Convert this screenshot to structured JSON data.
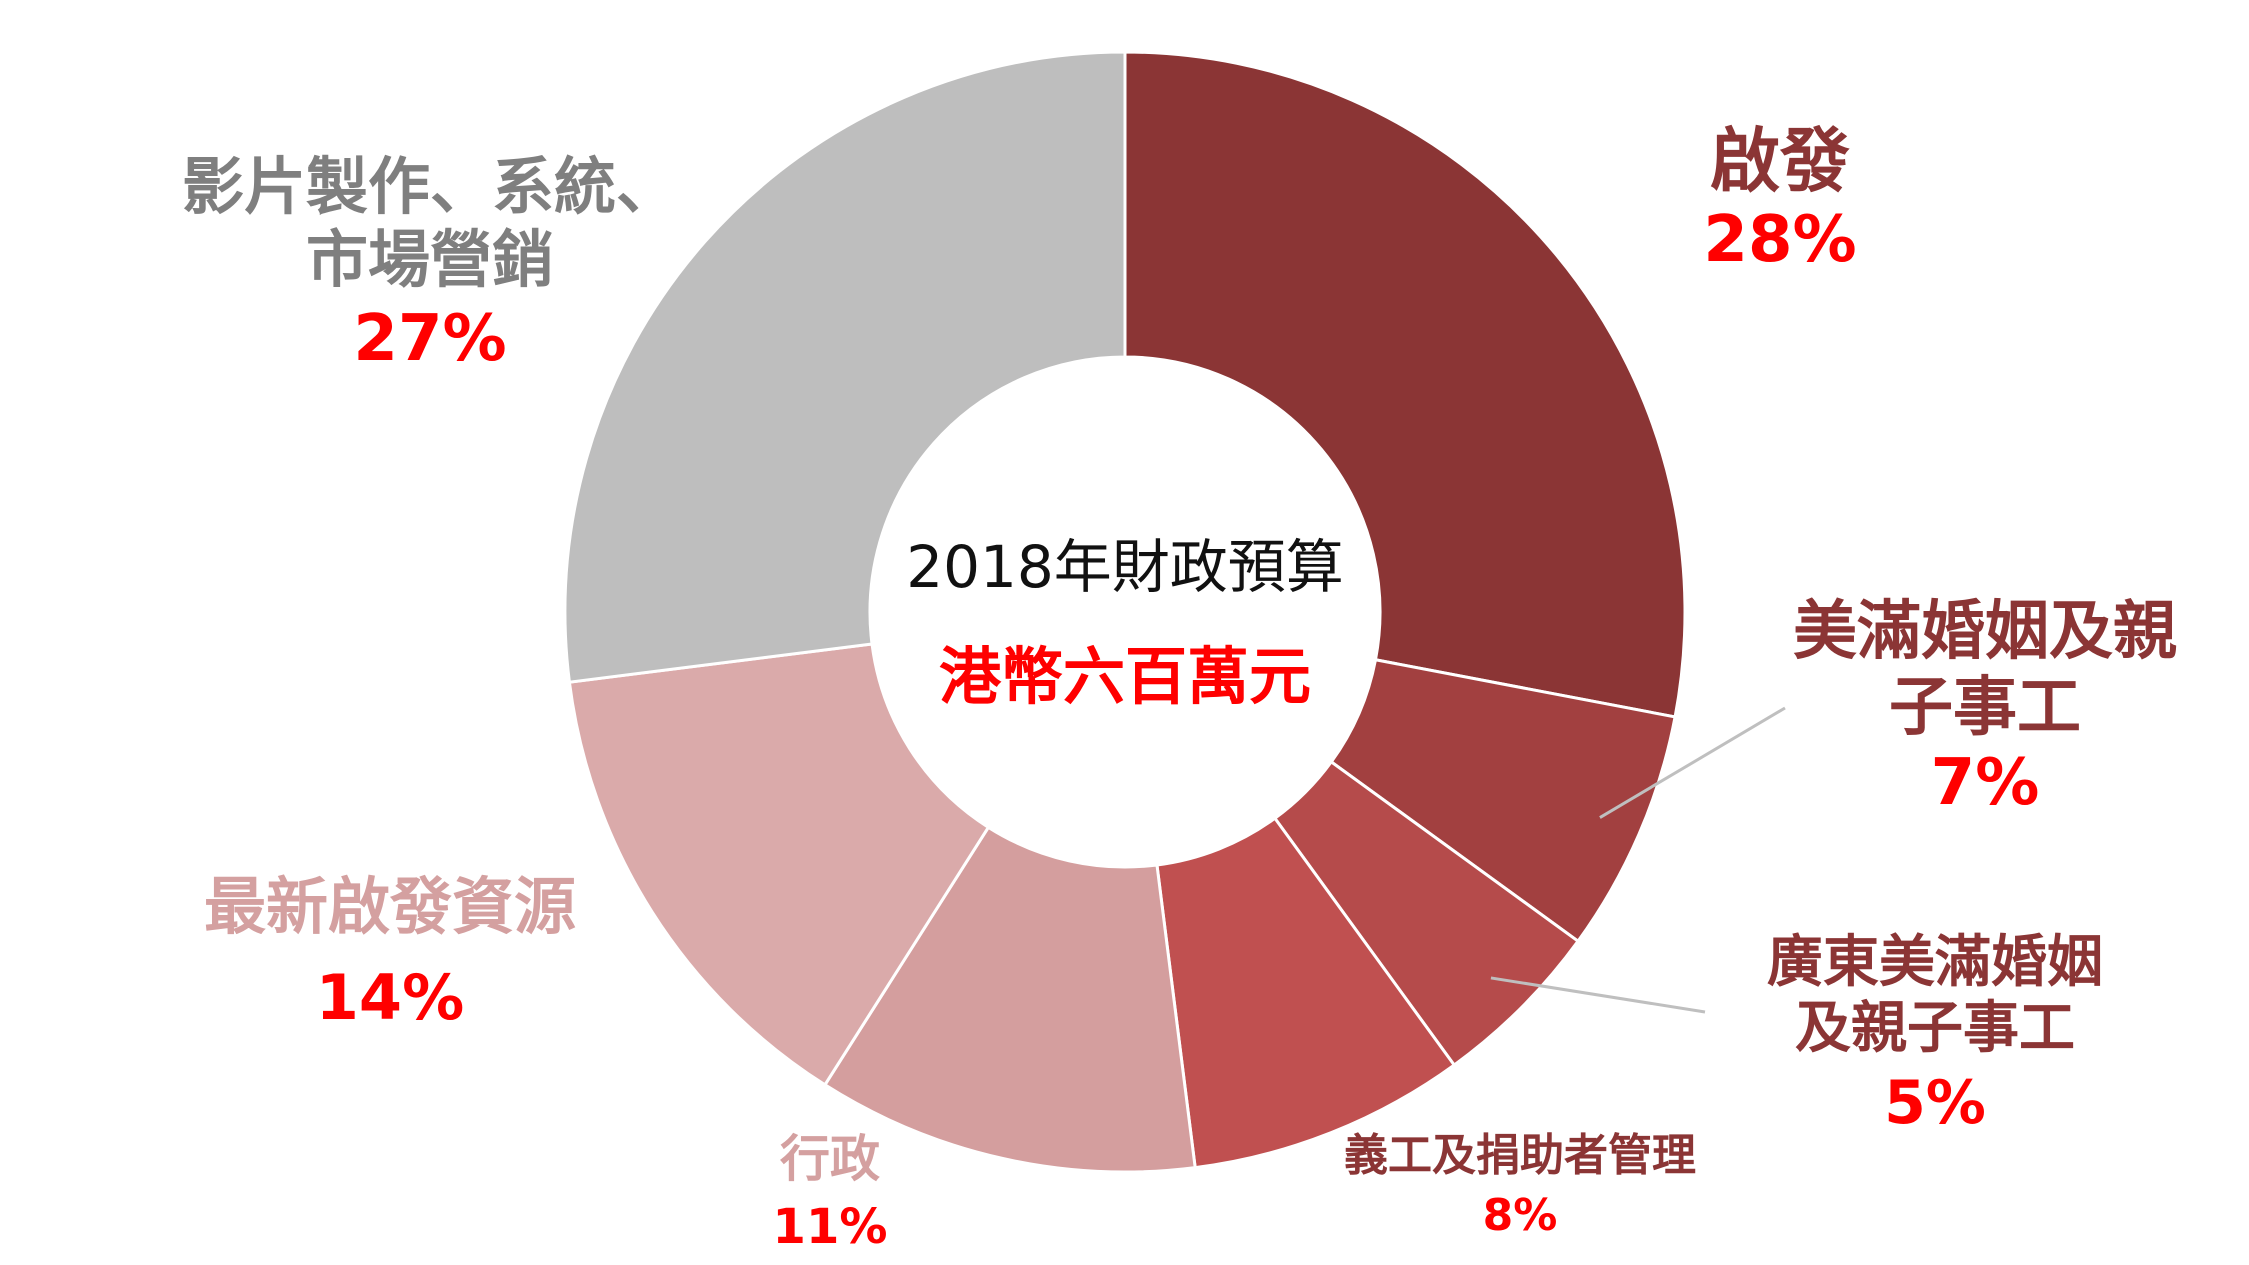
{
  "chart_data": {
    "type": "pie",
    "donut": true,
    "center_text": [
      "2018年財政預算",
      "港幣六百萬元"
    ],
    "slices": [
      {
        "label": "啟發",
        "percent_label": "28%",
        "value": 28,
        "color": "#8b3535",
        "label_color": "#8b3535"
      },
      {
        "label": "美滿婚姻及親子事工",
        "percent_label": "7%",
        "value": 7,
        "color": "#a24040",
        "label_color": "#8b3535"
      },
      {
        "label": "廣東美滿婚姻及親子事工",
        "percent_label": "5%",
        "value": 5,
        "color": "#b54b4b",
        "label_color": "#8b3535"
      },
      {
        "label": "義工及捐助者管理",
        "percent_label": "8%",
        "value": 8,
        "color": "#c05050",
        "label_color": "#8b3535"
      },
      {
        "label": "行政",
        "percent_label": "11%",
        "value": 11,
        "color": "#d49e9e",
        "label_color": "#d4a0a0"
      },
      {
        "label": "最新啟發資源",
        "percent_label": "14%",
        "value": 14,
        "color": "#daaaaa",
        "label_color": "#d4a0a0"
      },
      {
        "label": "影片製作、系統、市場營銷",
        "percent_label": "27%",
        "value": 27,
        "color": "#bebebe",
        "label_color": "#7f7f7f"
      }
    ],
    "legend": "none"
  }
}
